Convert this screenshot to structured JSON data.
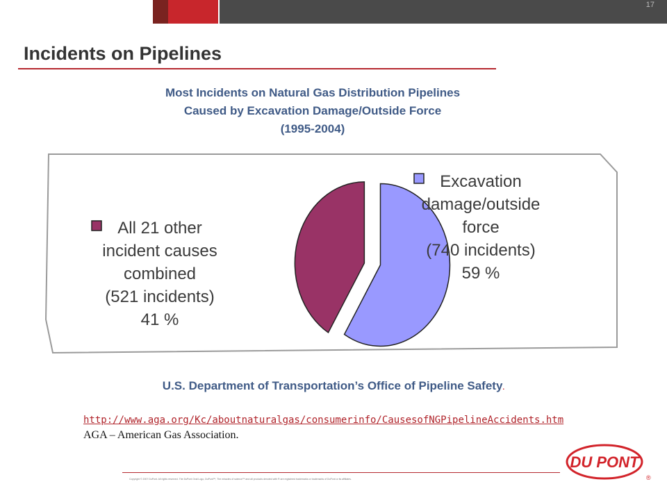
{
  "slide": {
    "number": "17",
    "title": "Incidents on Pipelines"
  },
  "chart_title": {
    "line1": "Most Incidents on Natural Gas Distribution Pipelines",
    "line2": "Caused by Excavation Damage/Outside Force",
    "line3": "(1995-2004)"
  },
  "chart_data": {
    "type": "pie",
    "title": "Most Incidents on Natural Gas Distribution Pipelines Caused by Excavation Damage/Outside Force (1995-2004)",
    "slices": [
      {
        "label_lines": [
          "Excavation",
          "damage/outside",
          "force",
          "(740 incidents)",
          "59 %"
        ],
        "value": 740,
        "percent": 59,
        "color": "#9999ff"
      },
      {
        "label_lines": [
          "All 21 other",
          "incident causes",
          "combined",
          "(521 incidents)",
          "41 %"
        ],
        "value": 521,
        "percent": 41,
        "color": "#993366"
      }
    ],
    "legend": "beside slices"
  },
  "source": "U.S. Department of Transportation’s Office of Pipeline Safety",
  "source_dot": ".",
  "link": "http://www.aga.org/Kc/aboutnaturalgas/consumerinfo/CausesofNGPipelineAccidents.htm",
  "aga_note": "AGA – American Gas Association.",
  "footer": {
    "copyright": "Copyright © 2007 DuPont. All rights reserved. The DuPont Oval Logo, DuPont™, The miracles of science™ and all products denoted with ® are registered trademarks or trademarks of DuPont or its affiliates."
  },
  "logo": {
    "text": "DU PONT",
    "mark": "®",
    "color": "#d2232a"
  }
}
